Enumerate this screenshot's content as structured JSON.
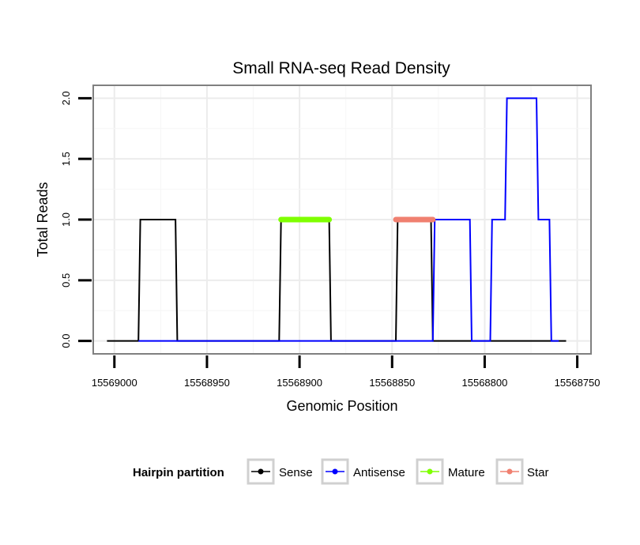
{
  "chart_data": {
    "type": "line",
    "title": "Small RNA-seq Read Density",
    "xlabel": "Genomic Position",
    "ylabel": "Total Reads",
    "xlim": [
      15569011,
      15568743
    ],
    "ylim": [
      -0.1,
      2.1
    ],
    "x_reversed": true,
    "x_ticks": [
      15569000,
      15568950,
      15568900,
      15568850,
      15568800,
      15568750
    ],
    "x_tick_labels": [
      "15569000",
      "15568950",
      "15568900",
      "15568850",
      "15568800",
      "15568750"
    ],
    "y_ticks": [
      0.0,
      0.5,
      1.0,
      1.5,
      2.0
    ],
    "y_tick_labels": [
      "0.0",
      "0.5",
      "1.0",
      "1.5",
      "2.0"
    ],
    "grid": true,
    "legend_position": "bottom",
    "legend_title": "Hairpin partition",
    "series": [
      {
        "name": "Sense",
        "color": "#000000",
        "x": [
          15569004,
          15568987,
          15568986,
          15568967,
          15568966,
          15568911,
          15568910,
          15568884,
          15568883,
          15568848,
          15568847,
          15568829,
          15568828,
          15568756
        ],
        "y": [
          0,
          0,
          1,
          1,
          0,
          0,
          1,
          1,
          0,
          0,
          1,
          1,
          0,
          0
        ]
      },
      {
        "name": "Antisense",
        "color": "#0000ff",
        "x": [
          15568987,
          15568828,
          15568827,
          15568808,
          15568807,
          15568797,
          15568796,
          15568789,
          15568788,
          15568772,
          15568771,
          15568765,
          15568764,
          15568760
        ],
        "y": [
          0,
          0,
          1,
          1,
          0,
          0,
          1,
          1,
          2,
          2,
          1,
          1,
          0,
          0
        ]
      },
      {
        "name": "Mature",
        "color": "#7fff00",
        "x": [
          15568910,
          15568884
        ],
        "y": [
          1,
          1
        ]
      },
      {
        "name": "Star",
        "color": "#f08070",
        "x": [
          15568848,
          15568828
        ],
        "y": [
          1,
          1
        ]
      }
    ]
  }
}
